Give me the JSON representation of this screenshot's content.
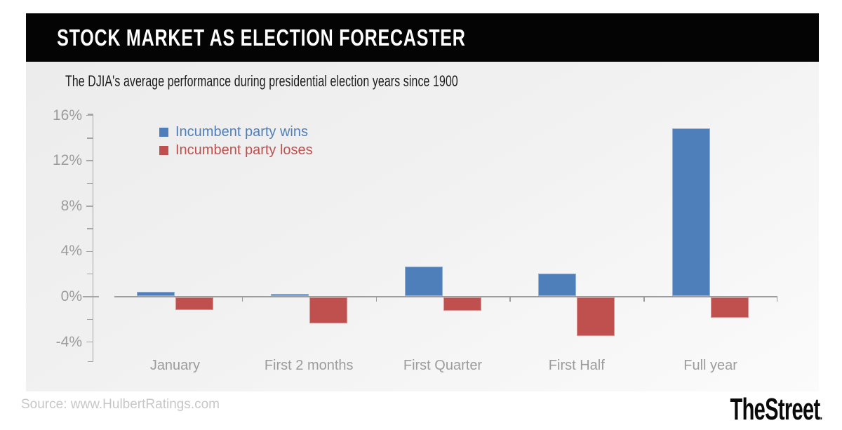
{
  "header": {
    "title": "STOCK MARKET AS ELECTION FORECASTER"
  },
  "subtitle": "The DJIA's average performance during presidential election years since 1900",
  "legend": [
    {
      "label": "Incumbent party wins",
      "color": "#4f7fba"
    },
    {
      "label": "Incumbent party loses",
      "color": "#c0504d"
    }
  ],
  "chart_data": {
    "type": "bar",
    "title": "STOCK MARKET AS ELECTION FORECASTER",
    "subtitle": "The DJIA's average performance during presidential election years since 1900",
    "categories": [
      "January",
      "First 2 months",
      "First Quarter",
      "First Half",
      "Full year"
    ],
    "series": [
      {
        "name": "Incumbent party wins",
        "color": "#4f7fba",
        "values": [
          0.4,
          0.2,
          2.6,
          2.0,
          14.8
        ]
      },
      {
        "name": "Incumbent party loses",
        "color": "#c0504d",
        "values": [
          -1.1,
          -2.3,
          -1.2,
          -3.4,
          -1.8
        ]
      }
    ],
    "xlabel": "",
    "ylabel": "",
    "ytick_labels": [
      "16%",
      "12%",
      "8%",
      "4%",
      "0%",
      "-4%"
    ],
    "ytick_values": [
      16,
      12,
      8,
      4,
      0,
      -4
    ],
    "ytick_minor": [
      14,
      10,
      6,
      2,
      -2
    ],
    "ylim": [
      -5.8,
      16.3
    ],
    "grid": false,
    "legend_position": "top-left",
    "axis_color": "#a6a6a6",
    "label_color": "#9c9c9c"
  },
  "footer": {
    "source": "Source: www.HulbertRatings.com",
    "brand": "TheStreet",
    "brand_suffix": "."
  }
}
